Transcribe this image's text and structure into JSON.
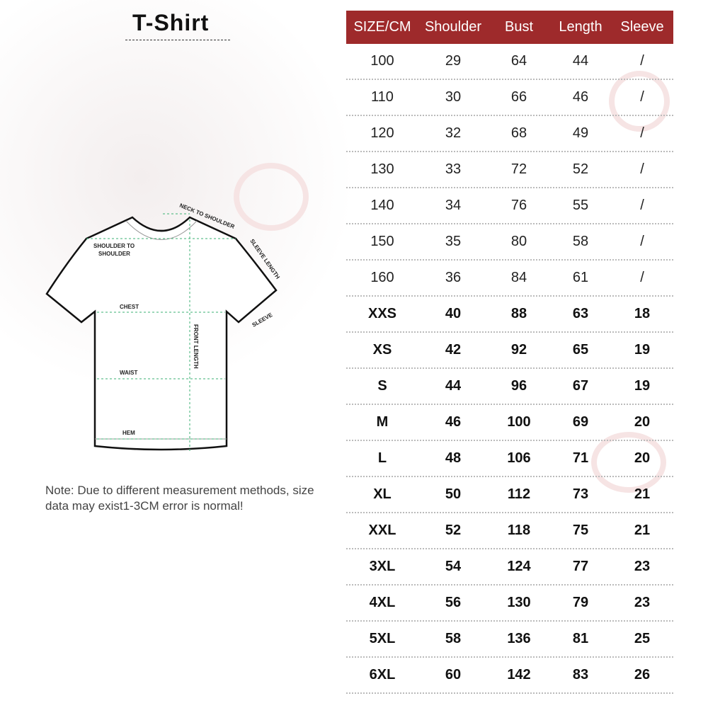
{
  "title": "T-Shirt",
  "diagram_labels": {
    "neck_to_shoulder": "NECK TO SHOULDER",
    "shoulder_to_shoulder_1": "SHOULDER TO",
    "shoulder_to_shoulder_2": "SHOULDER",
    "sleeve_length": "SLEEVE LENGTH",
    "chest": "CHEST",
    "sleeve": "SLEEVE",
    "front_length": "FRONT LENGTH",
    "waist": "WAIST",
    "hem": "HEM"
  },
  "note": "Note: Due to different measurement methods, size data may exist1-3CM error is normal!",
  "table": {
    "header_color": "#9e2a2b",
    "columns": [
      "SIZE/CM",
      "Shoulder",
      "Bust",
      "Length",
      "Sleeve"
    ],
    "rows": [
      [
        "100",
        "29",
        "64",
        "44",
        "/"
      ],
      [
        "110",
        "30",
        "66",
        "46",
        "/"
      ],
      [
        "120",
        "32",
        "68",
        "49",
        "/"
      ],
      [
        "130",
        "33",
        "72",
        "52",
        "/"
      ],
      [
        "140",
        "34",
        "76",
        "55",
        "/"
      ],
      [
        "150",
        "35",
        "80",
        "58",
        "/"
      ],
      [
        "160",
        "36",
        "84",
        "61",
        "/"
      ],
      [
        "XXS",
        "40",
        "88",
        "63",
        "18"
      ],
      [
        "XS",
        "42",
        "92",
        "65",
        "19"
      ],
      [
        "S",
        "44",
        "96",
        "67",
        "19"
      ],
      [
        "M",
        "46",
        "100",
        "69",
        "20"
      ],
      [
        "L",
        "48",
        "106",
        "71",
        "20"
      ],
      [
        "XL",
        "50",
        "112",
        "73",
        "21"
      ],
      [
        "XXL",
        "52",
        "118",
        "75",
        "21"
      ],
      [
        "3XL",
        "54",
        "124",
        "77",
        "23"
      ],
      [
        "4XL",
        "56",
        "130",
        "79",
        "23"
      ],
      [
        "5XL",
        "58",
        "136",
        "81",
        "25"
      ],
      [
        "6XL",
        "60",
        "142",
        "83",
        "26"
      ]
    ]
  }
}
